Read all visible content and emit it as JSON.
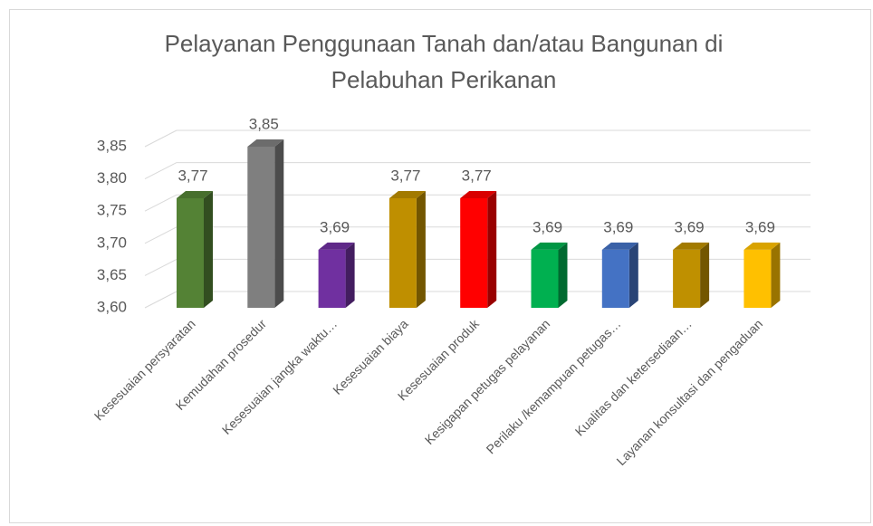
{
  "chart_data": {
    "type": "bar3d",
    "title": "Pelayanan Penggunaan Tanah dan/atau Bangunan di Pelabuhan Perikanan",
    "categories": [
      "Kesesuaian persyaratan",
      "Kemudahan prosedur",
      "Kesesuaian jangka waktu…",
      "Kesesuaian biaya",
      "Kesesuaian produk",
      "Kesigapan petugas pelayanan",
      "Perilaku /kemampuan petugas…",
      "Kualitas dan ketersediaan…",
      "Layanan konsultasi dan pengaduan"
    ],
    "values": [
      3.77,
      3.85,
      3.69,
      3.77,
      3.77,
      3.69,
      3.69,
      3.69,
      3.69
    ],
    "value_labels": [
      "3,77",
      "3,85",
      "3,69",
      "3,77",
      "3,77",
      "3,69",
      "3,69",
      "3,69",
      "3,69"
    ],
    "colors": [
      "#548235",
      "#7f7f7f",
      "#7030a0",
      "#bf8f00",
      "#ff0000",
      "#00b050",
      "#4472c4",
      "#bf9000",
      "#ffc000"
    ],
    "ylim": [
      3.6,
      3.85
    ],
    "yticks": [
      {
        "value": 3.6,
        "label": "3,60"
      },
      {
        "value": 3.65,
        "label": "3,65"
      },
      {
        "value": 3.7,
        "label": "3,70"
      },
      {
        "value": 3.75,
        "label": "3,75"
      },
      {
        "value": 3.8,
        "label": "3,80"
      },
      {
        "value": 3.85,
        "label": "3,85"
      }
    ],
    "grid": true
  }
}
